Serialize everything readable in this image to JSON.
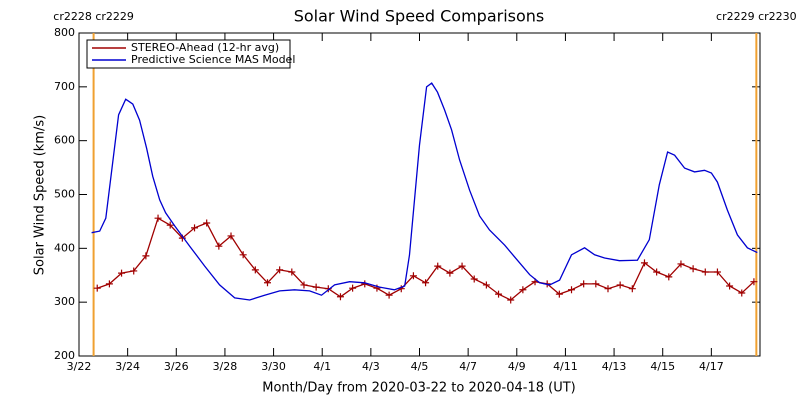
{
  "chart_data": {
    "type": "line",
    "title": "Solar Wind Speed Comparisons",
    "xlabel": "Month/Day from 2020-03-22 to 2020-04-18 (UT)",
    "ylabel": "Solar Wind Speed (km/s)",
    "xlim": [
      0,
      28
    ],
    "ylim": [
      200,
      800
    ],
    "xticks": [
      {
        "value": 0,
        "label": "3/22"
      },
      {
        "value": 2,
        "label": "3/24"
      },
      {
        "value": 4,
        "label": "3/26"
      },
      {
        "value": 6,
        "label": "3/28"
      },
      {
        "value": 8,
        "label": "3/30"
      },
      {
        "value": 10,
        "label": "4/1"
      },
      {
        "value": 12,
        "label": "4/3"
      },
      {
        "value": 14,
        "label": "4/5"
      },
      {
        "value": 16,
        "label": "4/7"
      },
      {
        "value": 18,
        "label": "4/9"
      },
      {
        "value": 20,
        "label": "4/11"
      },
      {
        "value": 22,
        "label": "4/13"
      },
      {
        "value": 24,
        "label": "4/15"
      },
      {
        "value": 26,
        "label": "4/17"
      }
    ],
    "yticks": [
      200,
      300,
      400,
      500,
      600,
      700,
      800
    ],
    "legend": "upper left",
    "annotations": [
      {
        "x": 0.6,
        "label": "cr2228 cr2229",
        "color": "#f0a030"
      },
      {
        "x": 27.85,
        "label": "cr2229 cr2230",
        "color": "#f0a030"
      }
    ],
    "series": [
      {
        "name": "STEREO-Ahead (12-hr avg)",
        "color": "#a00000",
        "marker": "+",
        "x": [
          0.75,
          1.25,
          1.75,
          2.25,
          2.75,
          3.25,
          3.75,
          4.25,
          4.75,
          5.25,
          5.75,
          6.25,
          6.75,
          7.25,
          7.75,
          8.25,
          8.75,
          9.25,
          9.75,
          10.25,
          10.75,
          11.25,
          11.75,
          12.25,
          12.75,
          13.25,
          13.75,
          14.25,
          14.75,
          15.25,
          15.75,
          16.25,
          16.75,
          17.25,
          17.75,
          18.25,
          18.75,
          19.25,
          19.75,
          20.25,
          20.75,
          21.25,
          21.75,
          22.25,
          22.75,
          23.25,
          23.75,
          24.25,
          24.75,
          25.25,
          25.75,
          26.25,
          26.75,
          27.25,
          27.75
        ],
        "values": [
          326,
          334,
          354,
          358,
          386,
          456,
          443,
          419,
          438,
          447,
          404,
          423,
          388,
          360,
          336,
          360,
          356,
          332,
          328,
          325,
          310,
          326,
          334,
          326,
          313,
          325,
          349,
          336,
          367,
          354,
          367,
          343,
          332,
          315,
          304,
          323,
          338,
          334,
          315,
          323,
          334,
          334,
          325,
          332,
          325,
          373,
          356,
          347,
          371,
          362,
          356,
          356,
          330,
          317,
          338
        ]
      },
      {
        "name": "Predictive Science MAS Model",
        "color": "#0000d0",
        "marker": null,
        "x": [
          0.52,
          0.85,
          1.1,
          1.63,
          1.92,
          2.21,
          2.49,
          2.78,
          3.03,
          3.32,
          3.56,
          3.93,
          4.55,
          5.17,
          5.78,
          6.4,
          7.02,
          7.63,
          8.25,
          8.86,
          9.48,
          9.97,
          10.51,
          11.13,
          11.74,
          12.36,
          12.97,
          13.39,
          13.59,
          14.0,
          14.29,
          14.5,
          14.74,
          15.03,
          15.32,
          15.65,
          16.06,
          16.47,
          16.88,
          17.5,
          17.91,
          18.53,
          18.94,
          19.35,
          19.76,
          20.25,
          20.79,
          21.2,
          21.61,
          22.22,
          22.96,
          23.45,
          23.86,
          24.2,
          24.49,
          24.9,
          25.31,
          25.72,
          26.0,
          26.25,
          26.66,
          27.07,
          27.48,
          27.89
        ],
        "values": [
          429,
          432,
          456,
          648,
          677,
          668,
          638,
          586,
          534,
          490,
          466,
          442,
          404,
          367,
          332,
          308,
          304,
          313,
          321,
          323,
          321,
          313,
          332,
          338,
          336,
          328,
          323,
          330,
          388,
          592,
          700,
          707,
          690,
          657,
          620,
          564,
          508,
          460,
          434,
          406,
          384,
          351,
          336,
          332,
          341,
          388,
          401,
          388,
          382,
          377,
          378,
          416,
          518,
          579,
          573,
          549,
          542,
          545,
          540,
          523,
          471,
          425,
          401,
          392
        ]
      }
    ]
  }
}
